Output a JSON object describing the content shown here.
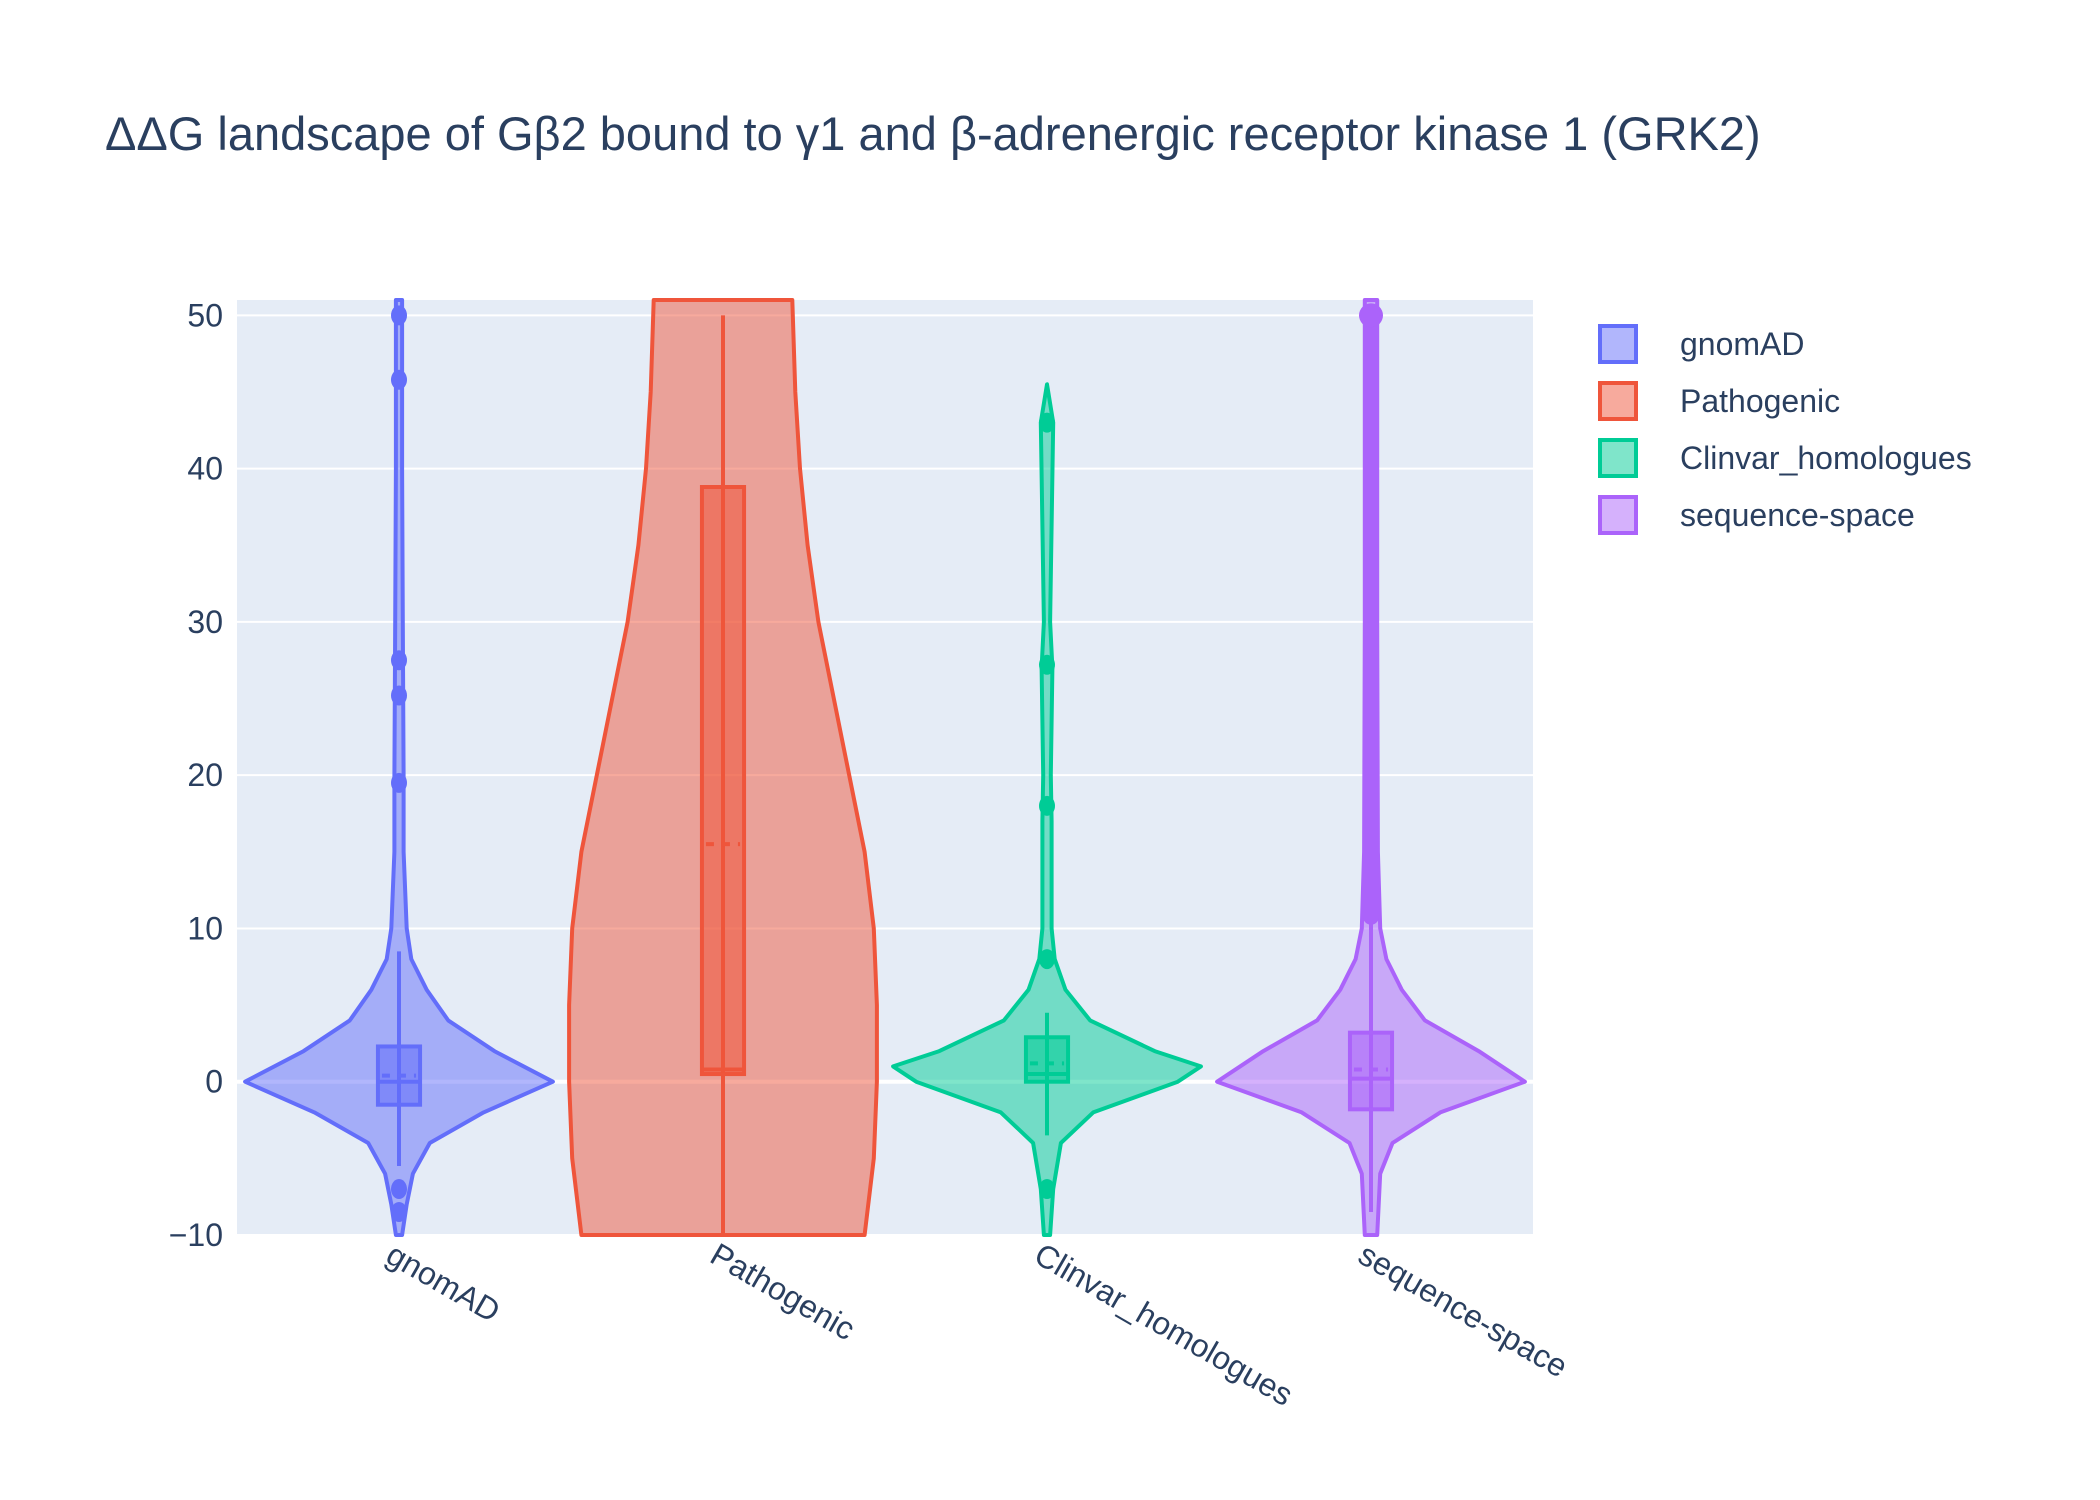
{
  "chart_data": {
    "type": "violin",
    "title": "ΔΔG landscape of Gβ2 bound to γ1 and β-adrenergic receptor kinase 1 (GRK2)",
    "xlabel": "",
    "ylabel": "",
    "ylim": [
      -10,
      51
    ],
    "yticks": [
      "−10",
      "0",
      "10",
      "20",
      "30",
      "40",
      "50"
    ],
    "grid": true,
    "legend_position": "right",
    "categories": [
      "gnomAD",
      "Pathogenic",
      "Clinvar_homologues",
      "sequence-space"
    ],
    "series": [
      {
        "name": "gnomAD",
        "color": "#636efa",
        "box": {
          "q1": -1.5,
          "median": 0.0,
          "mean": 0.4,
          "q3": 2.3,
          "whisker_low": -5.5,
          "whisker_high": 8.5
        },
        "violin_extent": [
          -10,
          51
        ],
        "violin_profile": [
          [
            -10,
            0.02
          ],
          [
            -8,
            0.05
          ],
          [
            -6,
            0.09
          ],
          [
            -4,
            0.2
          ],
          [
            -2,
            0.55
          ],
          [
            0,
            1.0
          ],
          [
            2,
            0.62
          ],
          [
            4,
            0.32
          ],
          [
            6,
            0.18
          ],
          [
            8,
            0.08
          ],
          [
            10,
            0.05
          ],
          [
            15,
            0.03
          ],
          [
            20,
            0.03
          ],
          [
            30,
            0.025
          ],
          [
            40,
            0.02
          ],
          [
            51,
            0.02
          ]
        ],
        "outliers": [
          -8.5,
          -7.0,
          19.5,
          25.2,
          27.5,
          45.8,
          50.0
        ]
      },
      {
        "name": "Pathogenic",
        "color": "#ef553b",
        "box": {
          "q1": 0.5,
          "median": 0.8,
          "mean": 15.5,
          "q3": 38.8,
          "whisker_low": -10,
          "whisker_high": 50.0
        },
        "violin_extent": [
          -10,
          51
        ],
        "violin_profile": [
          [
            -10,
            0.92
          ],
          [
            -5,
            0.98
          ],
          [
            0,
            1.0
          ],
          [
            5,
            1.0
          ],
          [
            10,
            0.98
          ],
          [
            15,
            0.92
          ],
          [
            20,
            0.82
          ],
          [
            25,
            0.72
          ],
          [
            30,
            0.62
          ],
          [
            35,
            0.55
          ],
          [
            40,
            0.5
          ],
          [
            45,
            0.47
          ],
          [
            51,
            0.45
          ]
        ],
        "outliers": []
      },
      {
        "name": "Clinvar_homologues",
        "color": "#00cc96",
        "box": {
          "q1": 0.0,
          "median": 0.5,
          "mean": 1.2,
          "q3": 2.9,
          "whisker_low": -3.5,
          "whisker_high": 4.5
        },
        "violin_extent": [
          -10,
          45.5
        ],
        "violin_profile": [
          [
            -10,
            0.02
          ],
          [
            -7,
            0.04
          ],
          [
            -4,
            0.09
          ],
          [
            -2,
            0.3
          ],
          [
            0,
            0.85
          ],
          [
            1,
            1.0
          ],
          [
            2,
            0.7
          ],
          [
            4,
            0.28
          ],
          [
            6,
            0.12
          ],
          [
            8,
            0.05
          ],
          [
            10,
            0.03
          ],
          [
            17,
            0.03
          ],
          [
            20,
            0.025
          ],
          [
            27,
            0.035
          ],
          [
            30,
            0.02
          ],
          [
            43,
            0.04
          ],
          [
            45.5,
            0.0
          ]
        ],
        "outliers": [
          -7.0,
          8.0,
          18.0,
          27.2,
          43.0
        ]
      },
      {
        "name": "sequence-space",
        "color": "#ab63fa",
        "box": {
          "q1": -1.8,
          "median": 0.2,
          "mean": 0.8,
          "q3": 3.2,
          "whisker_low": -8.5,
          "whisker_high": 10.5
        },
        "violin_extent": [
          -10,
          51
        ],
        "violin_profile": [
          [
            -10,
            0.04
          ],
          [
            -6,
            0.06
          ],
          [
            -4,
            0.14
          ],
          [
            -2,
            0.45
          ],
          [
            0,
            1.0
          ],
          [
            2,
            0.7
          ],
          [
            4,
            0.35
          ],
          [
            6,
            0.2
          ],
          [
            8,
            0.1
          ],
          [
            10,
            0.06
          ],
          [
            15,
            0.045
          ],
          [
            30,
            0.04
          ],
          [
            51,
            0.04
          ]
        ],
        "outliers_range": [
          10.5,
          50.0
        ]
      }
    ]
  }
}
